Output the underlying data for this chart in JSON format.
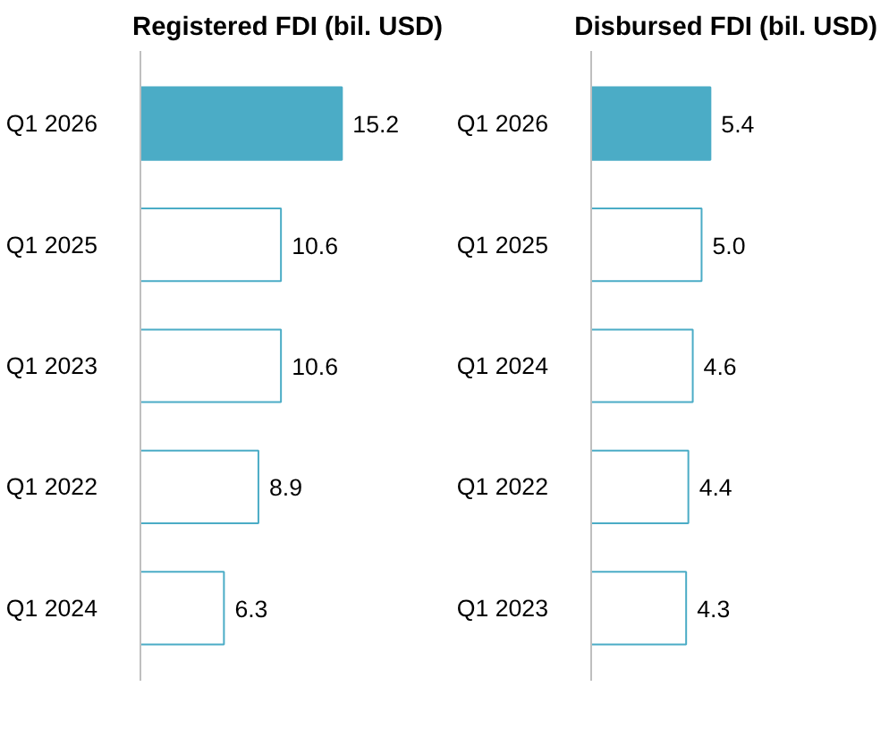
{
  "chart_data": [
    {
      "type": "bar",
      "orientation": "horizontal",
      "title": "Registered FDI (bil. USD)",
      "categories": [
        "Q1 2026",
        "Q1 2025",
        "Q1 2023",
        "Q1 2022",
        "Q1 2024"
      ],
      "values": [
        15.2,
        10.6,
        10.6,
        8.9,
        6.3
      ],
      "colors": [
        "#4bacc6",
        "#ffffff",
        "#ffffff",
        "#ffffff",
        "#ffffff"
      ],
      "data_labels": true,
      "grid": false,
      "legend": false
    },
    {
      "type": "bar",
      "orientation": "horizontal",
      "title": "Disbursed FDI (bil. USD)",
      "categories": [
        "Q1 2026",
        "Q1 2025",
        "Q1 2024",
        "Q1 2022",
        "Q1 2023"
      ],
      "values": [
        5.4,
        5.0,
        4.6,
        4.4,
        4.3
      ],
      "value_labels": [
        "5.4",
        "5.0",
        "4.6",
        "4.4",
        "4.3"
      ],
      "colors": [
        "#4bacc6",
        "#ffffff",
        "#ffffff",
        "#ffffff",
        "#ffffff"
      ],
      "data_labels": true,
      "grid": false,
      "legend": false
    }
  ]
}
